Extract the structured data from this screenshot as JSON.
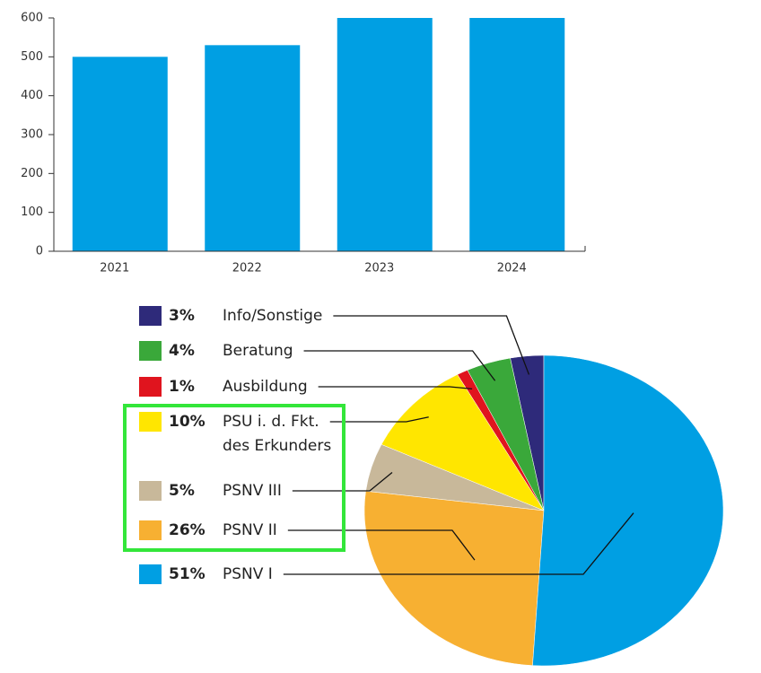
{
  "chart_data": [
    {
      "type": "bar",
      "categories": [
        "2021",
        "2022",
        "2023",
        "2024"
      ],
      "values": [
        500,
        530,
        600,
        600
      ],
      "color": "#009fe3",
      "ylim": [
        0,
        600
      ],
      "yticks": [
        0,
        100,
        200,
        300,
        400,
        500,
        600
      ],
      "grid": false
    },
    {
      "type": "pie",
      "categories": [
        "Info/Sonstige",
        "Beratung",
        "Ausbildung",
        "PSU i. d. Fkt.\ndes Erkunders",
        "PSNV III",
        "PSNV II",
        "PSNV I"
      ],
      "values": [
        3,
        4,
        1,
        10,
        5,
        26,
        51
      ],
      "value_labels": [
        "3%",
        "4%",
        "1%",
        "10%",
        "5%",
        "26%",
        "51%"
      ],
      "colors": [
        "#2e2a7a",
        "#3aa83a",
        "#e0141e",
        "#ffe600",
        "#c8b89a",
        "#f7b032",
        "#009fe3"
      ]
    }
  ]
}
